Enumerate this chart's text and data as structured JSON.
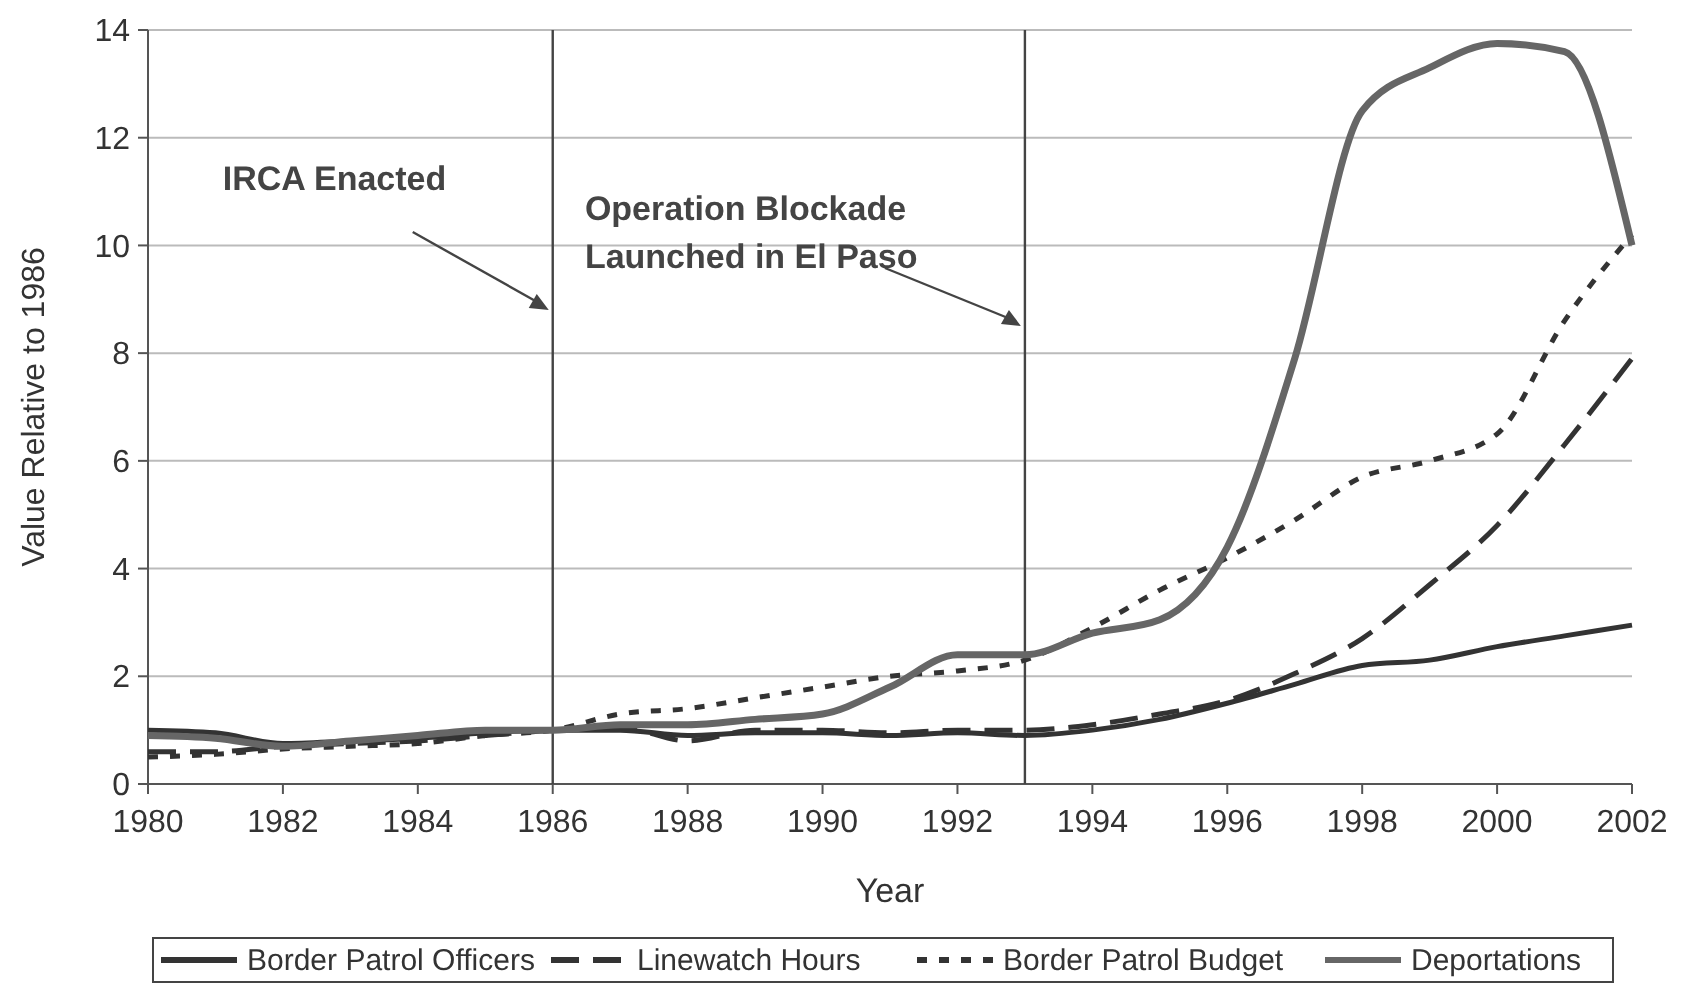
{
  "chart_data": {
    "type": "line",
    "xlabel": "Year",
    "ylabel": "Value Relative to 1986",
    "x": [
      1980,
      1981,
      1982,
      1983,
      1984,
      1985,
      1986,
      1987,
      1988,
      1989,
      1990,
      1991,
      1992,
      1993,
      1994,
      1995,
      1996,
      1997,
      1998,
      1999,
      2000,
      2001,
      2002
    ],
    "xlim": [
      1980,
      2002
    ],
    "xticks": [
      1980,
      1982,
      1984,
      1986,
      1988,
      1990,
      1992,
      1994,
      1996,
      1998,
      2000,
      2002
    ],
    "ylim": [
      0,
      14
    ],
    "yticks": [
      0,
      2,
      4,
      6,
      8,
      10,
      12,
      14
    ],
    "grid": "y",
    "legend": "bottom",
    "marker": "none",
    "series": [
      {
        "name": "Border Patrol Officers",
        "color": "#333333",
        "line_style": "solid",
        "values": [
          1.0,
          0.95,
          0.75,
          0.8,
          0.85,
          0.95,
          1.0,
          1.0,
          0.9,
          0.95,
          0.95,
          0.9,
          0.95,
          0.9,
          1.0,
          1.2,
          1.5,
          1.85,
          2.2,
          2.3,
          2.55,
          2.75,
          2.95
        ]
      },
      {
        "name": "Linewatch Hours",
        "color": "#333333",
        "line_style": "dashed",
        "values": [
          0.6,
          0.6,
          0.7,
          0.75,
          0.8,
          0.9,
          1.0,
          1.05,
          0.8,
          1.0,
          1.0,
          0.95,
          1.0,
          1.0,
          1.1,
          1.3,
          1.55,
          2.05,
          2.7,
          3.7,
          4.8,
          6.3,
          7.9
        ]
      },
      {
        "name": "Border Patrol Budget",
        "color": "#333333",
        "line_style": "dotted",
        "values": [
          0.5,
          0.55,
          0.65,
          0.7,
          0.75,
          0.9,
          1.0,
          1.3,
          1.4,
          1.6,
          1.8,
          2.0,
          2.1,
          2.3,
          2.9,
          3.6,
          4.2,
          4.9,
          5.7,
          6.0,
          6.5,
          8.6,
          10.2
        ]
      },
      {
        "name": "Deportations",
        "color": "#666666",
        "line_style": "solid",
        "values": [
          0.9,
          0.85,
          0.7,
          0.8,
          0.9,
          1.0,
          1.0,
          1.1,
          1.1,
          1.2,
          1.3,
          1.8,
          2.4,
          2.4,
          2.8,
          3.05,
          4.4,
          7.9,
          12.5,
          13.3,
          13.75,
          13.6,
          10.0
        ]
      }
    ],
    "ref_lines": [
      {
        "axis": "x",
        "value": 1986,
        "label": "IRCA Enacted",
        "color": "#444444"
      },
      {
        "axis": "x",
        "value": 1993,
        "label": "Operation Blockade\nLaunched in El Paso",
        "color": "#444444"
      }
    ]
  }
}
